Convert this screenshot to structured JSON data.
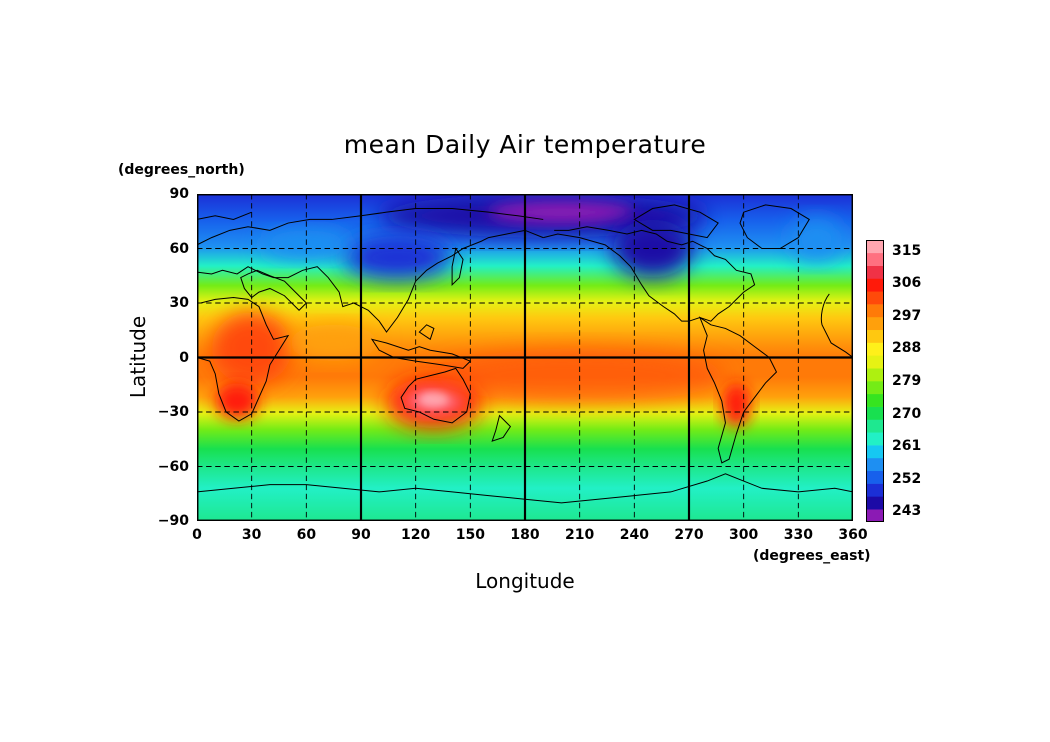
{
  "title": "mean Daily Air temperature",
  "y_unit": "(degrees_north)",
  "x_unit": "(degrees_east)",
  "xlabel": "Longitude",
  "ylabel": "Latitude",
  "x_ticks": [
    "0",
    "30",
    "60",
    "90",
    "120",
    "150",
    "180",
    "210",
    "240",
    "270",
    "300",
    "330",
    "360"
  ],
  "y_ticks": [
    "90",
    "60",
    "30",
    "0",
    "−30",
    "−60",
    "−90"
  ],
  "colorbar_labels": [
    "315",
    "306",
    "297",
    "288",
    "279",
    "270",
    "261",
    "252",
    "243"
  ],
  "colors": {
    "levels": [
      "#8b1ab4",
      "#1c0aa6",
      "#1b2fd6",
      "#1760ec",
      "#1e8ff2",
      "#16c8f2",
      "#22f0c6",
      "#1ee890",
      "#18e050",
      "#36e420",
      "#74ec16",
      "#aef010",
      "#e6f214",
      "#fff01a",
      "#ffc810",
      "#ffa00c",
      "#ff7a08",
      "#ff4a0a",
      "#ff1a0a",
      "#f03246",
      "#ff7080",
      "#ffa6b0"
    ],
    "land_outline": "#000000"
  },
  "chart_data": {
    "type": "heatmap",
    "title": "mean Daily Air temperature",
    "xlabel": "Longitude",
    "ylabel": "Latitude",
    "xunit": "degrees_east",
    "yunit": "degrees_north",
    "xlim": [
      0,
      360
    ],
    "ylim": [
      -90,
      90
    ],
    "x_ticks": [
      0,
      30,
      60,
      90,
      120,
      150,
      180,
      210,
      240,
      270,
      300,
      330,
      360
    ],
    "y_ticks": [
      -90,
      -60,
      -30,
      0,
      30,
      60,
      90
    ],
    "colorbar": {
      "min": 240,
      "max": 318,
      "step": 3,
      "labeled": [
        315,
        306,
        297,
        288,
        279,
        270,
        261,
        252,
        243
      ]
    },
    "grid": "dashed",
    "zonal_mean_K": [
      {
        "lat": 90,
        "value": 246
      },
      {
        "lat": 75,
        "value": 258
      },
      {
        "lat": 60,
        "value": 266
      },
      {
        "lat": 45,
        "value": 278
      },
      {
        "lat": 30,
        "value": 288
      },
      {
        "lat": 15,
        "value": 297
      },
      {
        "lat": 0,
        "value": 300
      },
      {
        "lat": -15,
        "value": 299
      },
      {
        "lat": -30,
        "value": 292
      },
      {
        "lat": -45,
        "value": 282
      },
      {
        "lat": -60,
        "value": 272
      },
      {
        "lat": -75,
        "value": 266
      },
      {
        "lat": -90,
        "value": 262
      }
    ],
    "extremes": [
      {
        "name": "Australia",
        "lon": 125,
        "lat": -25,
        "value": 312
      },
      {
        "name": "southern Africa",
        "lon": 22,
        "lat": -24,
        "value": 307
      },
      {
        "name": "South America",
        "lon": 295,
        "lat": -28,
        "value": 306
      },
      {
        "name": "northern Africa",
        "lon": 25,
        "lat": 8,
        "value": 303
      },
      {
        "name": "Arctic",
        "lon": 190,
        "lat": 80,
        "value": 241
      },
      {
        "name": "northern Canada",
        "lon": 255,
        "lat": 65,
        "value": 245
      },
      {
        "name": "Siberia",
        "lon": 110,
        "lat": 65,
        "value": 248
      }
    ]
  }
}
